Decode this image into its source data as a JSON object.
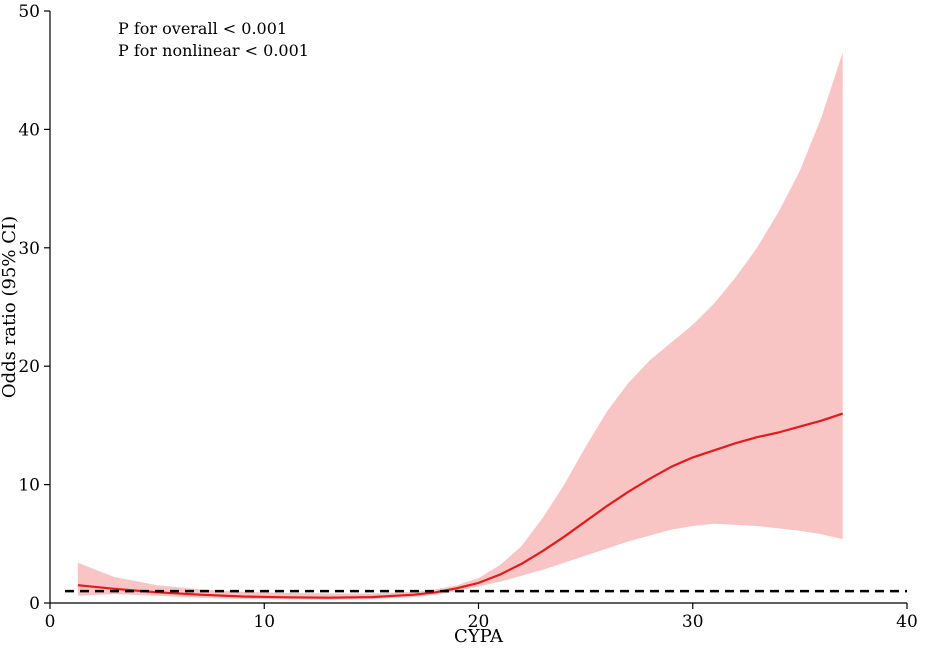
{
  "chart_data": {
    "type": "line",
    "title": "",
    "xlabel": "CYPA",
    "ylabel": "Odds ratio (95% CI)",
    "xlim": [
      0,
      40
    ],
    "ylim": [
      0,
      50
    ],
    "xticks": [
      0,
      10,
      20,
      30,
      40
    ],
    "yticks": [
      0,
      10,
      20,
      30,
      40,
      50
    ],
    "grid": false,
    "legend": "none",
    "annotations": [
      "P for overall < 0.001",
      "P for nonlinear < 0.001"
    ],
    "reference_line": {
      "y": 1,
      "style": "dashed",
      "color": "#000000"
    },
    "series": [
      {
        "color": "#e41a1c",
        "band_color": "#f8c4c4",
        "x": [
          1.3,
          3,
          5,
          7,
          9,
          11,
          13,
          15,
          17,
          18,
          19,
          20,
          21,
          22,
          23,
          24,
          25,
          26,
          27,
          28,
          29,
          30,
          31,
          32,
          33,
          34,
          35,
          36,
          37
        ],
        "y": [
          1.5,
          1.2,
          0.9,
          0.7,
          0.55,
          0.48,
          0.45,
          0.5,
          0.7,
          0.9,
          1.25,
          1.7,
          2.4,
          3.3,
          4.4,
          5.6,
          6.9,
          8.2,
          9.4,
          10.5,
          11.5,
          12.3,
          12.9,
          13.5,
          14.0,
          14.4,
          14.9,
          15.4,
          16.0
        ],
        "lower": [
          0.6,
          0.75,
          0.6,
          0.45,
          0.35,
          0.3,
          0.28,
          0.33,
          0.5,
          0.7,
          1.0,
          1.4,
          1.8,
          2.3,
          2.8,
          3.4,
          4.0,
          4.6,
          5.2,
          5.7,
          6.2,
          6.5,
          6.7,
          6.6,
          6.5,
          6.3,
          6.1,
          5.8,
          5.4
        ],
        "upper": [
          3.4,
          2.2,
          1.5,
          1.15,
          0.95,
          0.85,
          0.8,
          0.8,
          0.95,
          1.15,
          1.5,
          2.1,
          3.2,
          4.8,
          7.2,
          10.0,
          13.2,
          16.2,
          18.6,
          20.5,
          22.0,
          23.5,
          25.3,
          27.5,
          30.0,
          33.0,
          36.5,
          41.0,
          46.5
        ]
      }
    ]
  }
}
